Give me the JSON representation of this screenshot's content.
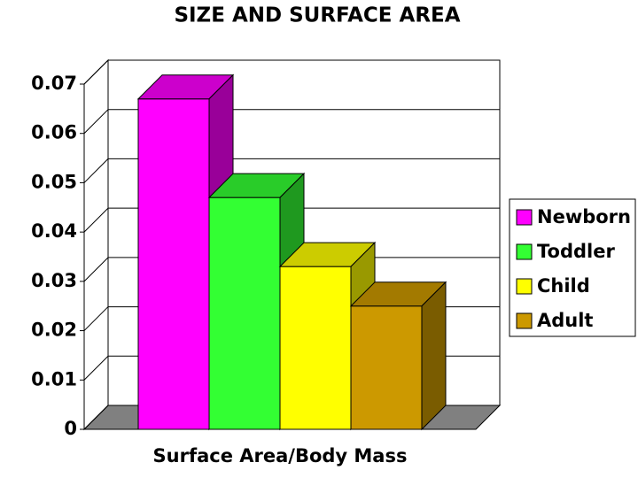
{
  "chart_data": {
    "type": "bar3d",
    "title": "SIZE AND SURFACE AREA",
    "x_label": "Surface Area/Body Mass",
    "categories": [
      "Surface Area/Body Mass"
    ],
    "series": [
      {
        "name": "Newborn",
        "color": "#ff00ff",
        "values": [
          0.067
        ]
      },
      {
        "name": "Toddler",
        "color": "#33ff33",
        "values": [
          0.047
        ]
      },
      {
        "name": "Child",
        "color": "#ffff00",
        "values": [
          0.033
        ]
      },
      {
        "name": "Adult",
        "color": "#cc9900",
        "values": [
          0.025
        ]
      }
    ],
    "ylim": [
      0,
      0.07
    ],
    "yticks": [
      0,
      0.01,
      0.02,
      0.03,
      0.04,
      0.05,
      0.06,
      0.07
    ],
    "grid": true,
    "legend": "right"
  }
}
